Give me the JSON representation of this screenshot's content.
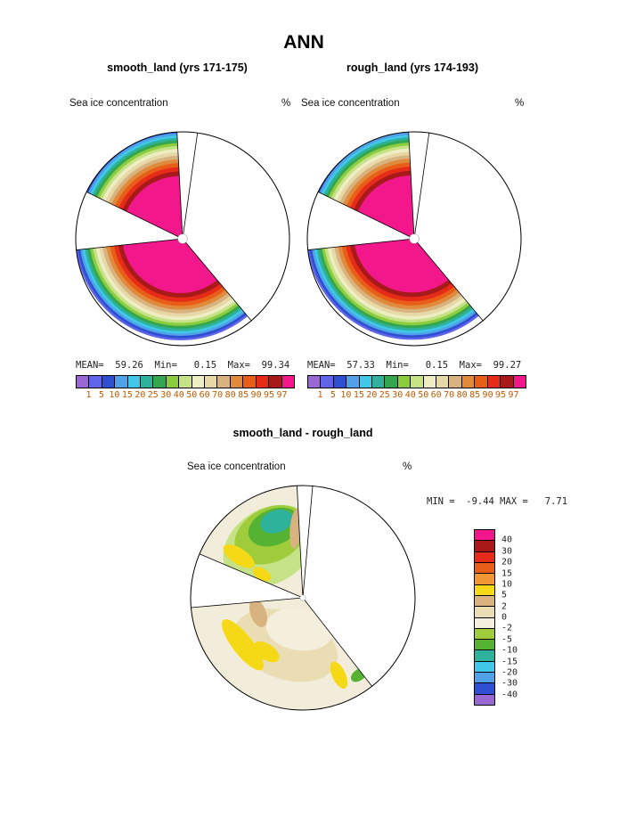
{
  "page": {
    "title": "ANN",
    "background": "#ffffff"
  },
  "panels": [
    {
      "id": "smooth_land",
      "subtitle": "smooth_land (yrs 171-175)",
      "field_label": "Sea ice concentration",
      "units": "%",
      "stats": "MEAN=  59.26  Min=   0.15  Max=  99.34"
    },
    {
      "id": "rough_land",
      "subtitle": "rough_land (yrs 174-193)",
      "field_label": "Sea ice concentration",
      "units": "%",
      "stats": "MEAN=  57.33  Min=   0.15  Max=  99.27"
    },
    {
      "id": "diff",
      "subtitle": "smooth_land - rough_land",
      "field_label": "Sea ice concentration",
      "units": "%",
      "stats": "MIN =  -9.44 MAX =   7.71"
    }
  ],
  "chart_data": [
    {
      "id": "smooth_land",
      "type": "heatmap",
      "subtype": "south-polar contour map",
      "title": "smooth_land (yrs 171-175)",
      "field": "Sea ice concentration",
      "units": "%",
      "stats": {
        "mean": 59.26,
        "min": 0.15,
        "max": 99.34
      },
      "levels": [
        1,
        5,
        10,
        15,
        20,
        25,
        30,
        40,
        50,
        60,
        70,
        80,
        85,
        90,
        95,
        97
      ],
      "palette": [
        "#9A68D2",
        "#5F64E8",
        "#2E4FD1",
        "#4FA2E8",
        "#3FC8E8",
        "#2FB29B",
        "#33A64F",
        "#8CCC3F",
        "#C6E287",
        "#EFEDC4",
        "#E7D8A7",
        "#D9B37F",
        "#E08A3C",
        "#E85E19",
        "#E62B19",
        "#A81919",
        "#F2188C"
      ],
      "sectors": [
        {
          "start": 296,
          "end": 357
        },
        {
          "start": 140,
          "end": 264
        }
      ],
      "boundary_angles": [
        357,
        8,
        296,
        264,
        140
      ],
      "ring_offset": {
        "dx": -0.02,
        "dy": -0.04
      },
      "rings": [
        {
          "r": 0.99,
          "i": 1
        },
        {
          "r": 0.97,
          "i": 2
        },
        {
          "r": 0.948,
          "i": 3
        },
        {
          "r": 0.926,
          "i": 4
        },
        {
          "r": 0.904,
          "i": 5
        },
        {
          "r": 0.88,
          "i": 6
        },
        {
          "r": 0.855,
          "i": 7
        },
        {
          "r": 0.828,
          "i": 8
        },
        {
          "r": 0.8,
          "i": 9
        },
        {
          "r": 0.77,
          "i": 10
        },
        {
          "r": 0.738,
          "i": 11
        },
        {
          "r": 0.704,
          "i": 12
        },
        {
          "r": 0.668,
          "i": 13
        },
        {
          "r": 0.63,
          "i": 14
        },
        {
          "r": 0.59,
          "i": 15
        },
        {
          "r": 0.548,
          "i": 16
        }
      ],
      "center_hole_r": 0.045
    },
    {
      "id": "rough_land",
      "type": "heatmap",
      "subtype": "south-polar contour map",
      "title": "rough_land (yrs 174-193)",
      "field": "Sea ice concentration",
      "units": "%",
      "stats": {
        "mean": 57.33,
        "min": 0.15,
        "max": 99.27
      },
      "levels": [
        1,
        5,
        10,
        15,
        20,
        25,
        30,
        40,
        50,
        60,
        70,
        80,
        85,
        90,
        95,
        97
      ],
      "palette": [
        "#9A68D2",
        "#5F64E8",
        "#2E4FD1",
        "#4FA2E8",
        "#3FC8E8",
        "#2FB29B",
        "#33A64F",
        "#8CCC3F",
        "#C6E287",
        "#EFEDC4",
        "#E7D8A7",
        "#D9B37F",
        "#E08A3C",
        "#E85E19",
        "#E62B19",
        "#A81919",
        "#F2188C"
      ],
      "sectors": [
        {
          "start": 296,
          "end": 357
        },
        {
          "start": 140,
          "end": 264
        }
      ],
      "boundary_angles": [
        357,
        8,
        296,
        264,
        140
      ],
      "ring_offset": {
        "dx": -0.02,
        "dy": -0.045
      },
      "rings": [
        {
          "r": 0.99,
          "i": 1
        },
        {
          "r": 0.97,
          "i": 2
        },
        {
          "r": 0.948,
          "i": 3
        },
        {
          "r": 0.926,
          "i": 4
        },
        {
          "r": 0.904,
          "i": 5
        },
        {
          "r": 0.88,
          "i": 6
        },
        {
          "r": 0.855,
          "i": 7
        },
        {
          "r": 0.828,
          "i": 8
        },
        {
          "r": 0.8,
          "i": 9
        },
        {
          "r": 0.77,
          "i": 10
        },
        {
          "r": 0.738,
          "i": 11
        },
        {
          "r": 0.704,
          "i": 12
        },
        {
          "r": 0.668,
          "i": 13
        },
        {
          "r": 0.63,
          "i": 14
        },
        {
          "r": 0.59,
          "i": 15
        },
        {
          "r": 0.548,
          "i": 16
        }
      ],
      "center_hole_r": 0.045
    },
    {
      "id": "diff",
      "type": "heatmap",
      "subtype": "south-polar contour difference map",
      "title": "smooth_land - rough_land",
      "field": "Sea ice concentration",
      "units": "%",
      "stats": {
        "min": -9.44,
        "max": 7.71
      },
      "levels": [
        40,
        30,
        20,
        15,
        10,
        5,
        2,
        0,
        -2,
        -5,
        -10,
        -15,
        -20,
        -30,
        -40
      ],
      "palette": [
        "#F2188C",
        "#A81919",
        "#E62B19",
        "#E85E19",
        "#F09633",
        "#F5D916",
        "#D9B37F",
        "#EADDB4",
        "#F4EFDC",
        "#9ECC3B",
        "#55B233",
        "#2FB29B",
        "#3FC8E8",
        "#4FA2E8",
        "#2E4FD1",
        "#9A68D2"
      ],
      "sectors": [
        {
          "start": 293,
          "end": 357
        },
        {
          "start": 142,
          "end": 265
        }
      ],
      "boundary_angles": [
        357,
        5,
        293,
        265,
        142
      ],
      "base_color": "#F2EDDA",
      "blobs": [
        {
          "sector": 0,
          "bearing": 327,
          "radius": 0.55,
          "rx": 0.44,
          "ry": 0.33,
          "rot": -33,
          "color": "#C6E287"
        },
        {
          "sector": 0,
          "bearing": 333,
          "radius": 0.63,
          "rx": 0.34,
          "ry": 0.24,
          "rot": -27,
          "color": "#9ECC3B"
        },
        {
          "sector": 0,
          "bearing": 338,
          "radius": 0.68,
          "rx": 0.24,
          "ry": 0.16,
          "rot": -22,
          "color": "#55B233"
        },
        {
          "sector": 0,
          "bearing": 341,
          "radius": 0.72,
          "rx": 0.15,
          "ry": 0.1,
          "rot": -19,
          "color": "#2FB29B"
        },
        {
          "sector": 0,
          "bearing": 303,
          "radius": 0.68,
          "rx": 0.16,
          "ry": 0.07,
          "rot": 33,
          "color": "#F5D916"
        },
        {
          "sector": 0,
          "bearing": 300,
          "radius": 0.42,
          "rx": 0.09,
          "ry": 0.05,
          "rot": 30,
          "color": "#F5D916"
        },
        {
          "sector": 0,
          "bearing": 354,
          "radius": 0.62,
          "rx": 0.05,
          "ry": 0.18,
          "rot": 5,
          "color": "#D9B37F"
        },
        {
          "sector": 1,
          "bearing": 200,
          "radius": 0.45,
          "rx": 0.48,
          "ry": 0.3,
          "rot": 20,
          "color": "#EADDB4"
        },
        {
          "sector": 1,
          "bearing": 186,
          "radius": 0.28,
          "rx": 0.3,
          "ry": 0.19,
          "rot": 8,
          "color": "#F4EFDC"
        },
        {
          "sector": 1,
          "bearing": 232,
          "radius": 0.68,
          "rx": 0.28,
          "ry": 0.09,
          "rot": 52,
          "color": "#F5D916"
        },
        {
          "sector": 1,
          "bearing": 214,
          "radius": 0.58,
          "rx": 0.13,
          "ry": 0.07,
          "rot": 34,
          "color": "#F5D916"
        },
        {
          "sector": 1,
          "bearing": 155,
          "radius": 0.76,
          "rx": 0.13,
          "ry": 0.06,
          "rot": 65,
          "color": "#F5D916"
        },
        {
          "sector": 1,
          "bearing": 251,
          "radius": 0.42,
          "rx": 0.13,
          "ry": 0.07,
          "rot": 70,
          "color": "#D9B37F"
        },
        {
          "sector": 1,
          "bearing": 144,
          "radius": 0.85,
          "rx": 0.05,
          "ry": 0.08,
          "rot": 55,
          "color": "#55B233"
        }
      ],
      "center_hole_r": 0.025
    }
  ]
}
